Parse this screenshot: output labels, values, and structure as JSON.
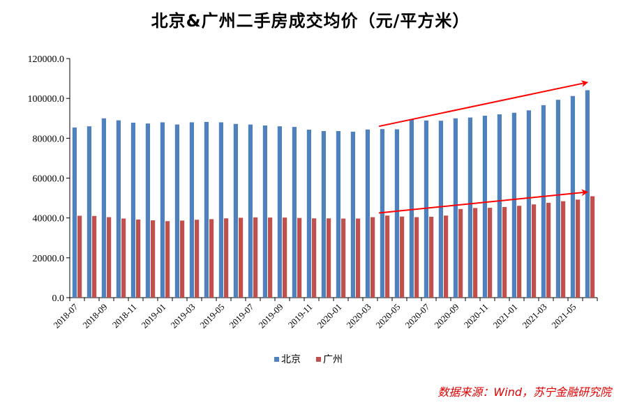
{
  "chart_data": {
    "type": "bar",
    "title": "北京&广州二手房成交均价（元/平方米）",
    "categories": [
      "2018-07",
      "2018-08",
      "2018-09",
      "2018-10",
      "2018-11",
      "2018-12",
      "2019-01",
      "2019-02",
      "2019-03",
      "2019-04",
      "2019-05",
      "2019-06",
      "2019-07",
      "2019-08",
      "2019-09",
      "2019-10",
      "2019-11",
      "2019-12",
      "2020-01",
      "2020-02",
      "2020-03",
      "2020-04",
      "2020-05",
      "2020-06",
      "2020-07",
      "2020-08",
      "2020-09",
      "2020-10",
      "2020-11",
      "2020-12",
      "2021-01",
      "2021-02",
      "2021-03",
      "2021-04",
      "2021-05",
      "2021-06"
    ],
    "tick_labels": [
      "2018-07",
      "2018-09",
      "2018-11",
      "2019-01",
      "2019-03",
      "2019-05",
      "2019-07",
      "2019-09",
      "2019-11",
      "2020-01",
      "2020-03",
      "2020-05",
      "2020-07",
      "2020-09",
      "2020-11",
      "2021-01",
      "2021-03",
      "2021-05"
    ],
    "series": [
      {
        "name": "北京",
        "color": "#4f81bd",
        "values": [
          85400,
          86000,
          90000,
          89000,
          87800,
          87400,
          88000,
          86900,
          88000,
          88200,
          88000,
          87200,
          86900,
          86400,
          86000,
          85700,
          84300,
          83600,
          83600,
          83300,
          84400,
          84600,
          84500,
          89500,
          88900,
          88800,
          90000,
          90400,
          91300,
          92000,
          92800,
          94000,
          96600,
          99300,
          101200,
          104100
        ]
      },
      {
        "name": "广州",
        "color": "#c0504d",
        "values": [
          41100,
          41000,
          40400,
          39700,
          39200,
          38800,
          38400,
          38700,
          39100,
          39400,
          39800,
          40100,
          40300,
          40200,
          40200,
          40000,
          39800,
          39800,
          39700,
          39700,
          40400,
          41200,
          40700,
          40400,
          40600,
          41200,
          44500,
          45000,
          45100,
          45500,
          46100,
          46800,
          47600,
          48400,
          49200,
          50900
        ]
      }
    ],
    "ylim": [
      0,
      120000
    ],
    "yticks": [
      0,
      20000,
      40000,
      60000,
      80000,
      100000,
      120000
    ],
    "ytick_labels": [
      "0.0",
      "20000.0",
      "40000.0",
      "60000.0",
      "80000.0",
      "100000.0",
      "120000.0"
    ],
    "legend_position": "bottom-center",
    "annotations": [
      {
        "type": "arrow",
        "series": "北京",
        "from": [
          "2020-04",
          86000
        ],
        "to": [
          "2021-06",
          108000
        ],
        "color": "#ff0000"
      },
      {
        "type": "arrow",
        "series": "广州",
        "from": [
          "2020-04",
          42500
        ],
        "to": [
          "2021-06",
          53000
        ],
        "color": "#ff0000"
      }
    ],
    "source": "数据来源：Wind，苏宁金融研究院"
  }
}
